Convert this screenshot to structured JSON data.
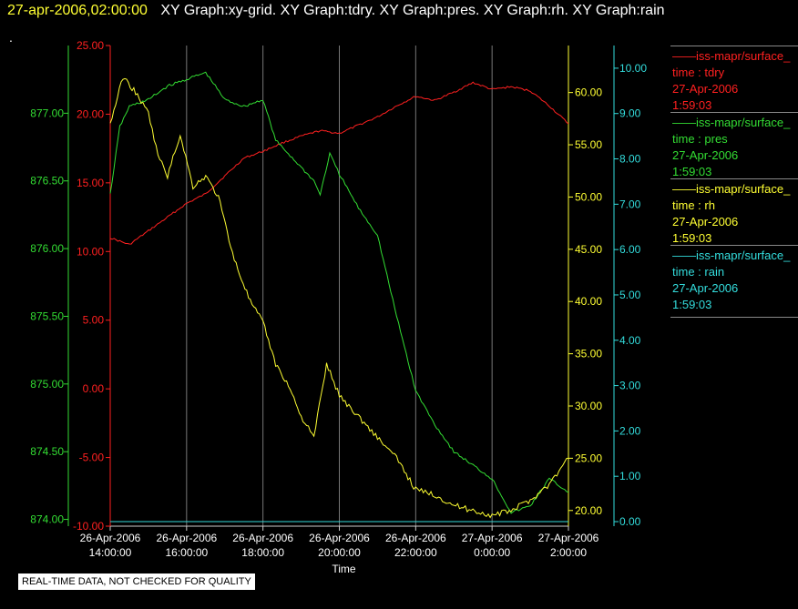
{
  "header": {
    "timestamp": "27-apr-2006,02:00:00",
    "titles": "XY Graph:xy-grid.  XY Graph:tdry.  XY Graph:pres.  XY Graph:rh.  XY Graph:rain",
    "marker": "."
  },
  "quality_label": "REAL-TIME DATA, NOT CHECKED FOR QUALITY",
  "legend": [
    {
      "name": "——iss-mapr/surface_",
      "field": "time : tdry",
      "date": "27-Apr-2006",
      "time": "1:59:03",
      "color": "#ff2020"
    },
    {
      "name": "——iss-mapr/surface_",
      "field": "time : pres",
      "date": "27-Apr-2006",
      "time": "1:59:03",
      "color": "#33dd33"
    },
    {
      "name": "——iss-mapr/surface_",
      "field": "time : rh",
      "date": "27-Apr-2006",
      "time": "1:59:03",
      "color": "#ffff33"
    },
    {
      "name": "——iss-mapr/surface_",
      "field": "time : rain",
      "date": "27-Apr-2006",
      "time": "1:59:03",
      "color": "#33dddd"
    }
  ],
  "chart_data": {
    "type": "line",
    "xlabel": "Time",
    "x_ticks": [
      {
        "date": "26-Apr-2006",
        "time": "14:00:00"
      },
      {
        "date": "26-Apr-2006",
        "time": "16:00:00"
      },
      {
        "date": "26-Apr-2006",
        "time": "18:00:00"
      },
      {
        "date": "26-Apr-2006",
        "time": "20:00:00"
      },
      {
        "date": "26-Apr-2006",
        "time": "22:00:00"
      },
      {
        "date": "27-Apr-2006",
        "time": "0:00:00"
      },
      {
        "date": "27-Apr-2006",
        "time": "2:00:00"
      }
    ],
    "grid": "vertical",
    "axes": {
      "pres": {
        "ylim": [
          873.95,
          877.5
        ],
        "ticks": [
          "874.00",
          "874.50",
          "875.00",
          "875.50",
          "876.00",
          "876.50",
          "877.00"
        ],
        "tick_values": [
          874.0,
          874.5,
          875.0,
          875.5,
          876.0,
          876.5,
          877.0
        ],
        "color": "#33dd33"
      },
      "tdry": {
        "ylim": [
          -10,
          25
        ],
        "ticks": [
          "-10.00",
          "-5.00",
          "0.00",
          "5.00",
          "10.00",
          "15.00",
          "20.00",
          "25.00"
        ],
        "tick_values": [
          -10,
          -5,
          0,
          5,
          10,
          15,
          20,
          25
        ],
        "color": "#ff2020"
      },
      "rh": {
        "ylim": [
          18.5,
          64.5
        ],
        "ticks": [
          "20.00",
          "25.00",
          "30.00",
          "35.00",
          "40.00",
          "45.00",
          "50.00",
          "55.00",
          "60.00"
        ],
        "tick_values": [
          20,
          25,
          30,
          35,
          40,
          45,
          50,
          55,
          60
        ],
        "color": "#ffff33"
      },
      "rain": {
        "ylim": [
          -0.1,
          10.5
        ],
        "ticks": [
          "0.00",
          "1.00",
          "2.00",
          "3.00",
          "4.00",
          "5.00",
          "6.00",
          "7.00",
          "8.00",
          "9.00",
          "10.00"
        ],
        "tick_values": [
          0,
          1,
          2,
          3,
          4,
          5,
          6,
          7,
          8,
          9,
          10
        ],
        "color": "#33dddd"
      }
    },
    "series": [
      {
        "field": "tdry",
        "axis": "tdry",
        "color": "#ff2020",
        "x": [
          "2006-04-26 14:00",
          "2006-04-26 14:30",
          "2006-04-26 15:00",
          "2006-04-26 15:30",
          "2006-04-26 16:00",
          "2006-04-26 16:30",
          "2006-04-26 17:00",
          "2006-04-26 17:30",
          "2006-04-26 18:00",
          "2006-04-26 18:30",
          "2006-04-26 19:00",
          "2006-04-26 19:30",
          "2006-04-26 20:00",
          "2006-04-26 20:30",
          "2006-04-26 21:00",
          "2006-04-26 21:30",
          "2006-04-26 22:00",
          "2006-04-26 22:30",
          "2006-04-26 23:00",
          "2006-04-26 23:30",
          "2006-04-27 00:00",
          "2006-04-27 00:30",
          "2006-04-27 01:00",
          "2006-04-27 01:30",
          "2006-04-27 02:00"
        ],
        "y": [
          11.0,
          10.5,
          11.5,
          12.5,
          13.5,
          14.2,
          15.5,
          16.8,
          17.3,
          17.9,
          18.4,
          18.8,
          18.6,
          19.2,
          19.8,
          20.6,
          21.3,
          21.0,
          21.6,
          22.3,
          21.8,
          22.0,
          21.7,
          20.6,
          19.3
        ]
      },
      {
        "field": "pres",
        "axis": "pres",
        "color": "#33dd33",
        "x": [
          "2006-04-26 14:00",
          "2006-04-26 14:15",
          "2006-04-26 14:30",
          "2006-04-26 15:00",
          "2006-04-26 15:30",
          "2006-04-26 16:00",
          "2006-04-26 16:30",
          "2006-04-26 17:00",
          "2006-04-26 17:30",
          "2006-04-26 18:00",
          "2006-04-26 18:20",
          "2006-04-26 18:40",
          "2006-04-26 19:00",
          "2006-04-26 19:20",
          "2006-04-26 19:30",
          "2006-04-26 19:45",
          "2006-04-26 20:00",
          "2006-04-26 20:30",
          "2006-04-26 21:00",
          "2006-04-26 21:30",
          "2006-04-26 22:00",
          "2006-04-26 22:30",
          "2006-04-26 23:00",
          "2006-04-26 23:30",
          "2006-04-27 00:00",
          "2006-04-27 00:30",
          "2006-04-27 01:00",
          "2006-04-27 01:30",
          "2006-04-27 02:00"
        ],
        "y": [
          876.4,
          876.9,
          877.05,
          877.1,
          877.2,
          877.25,
          877.3,
          877.1,
          877.05,
          877.1,
          876.8,
          876.7,
          876.6,
          876.5,
          876.4,
          876.7,
          876.55,
          876.3,
          876.1,
          875.5,
          874.95,
          874.7,
          874.5,
          874.4,
          874.3,
          874.05,
          874.1,
          874.3,
          874.2
        ]
      },
      {
        "field": "rh",
        "axis": "rh",
        "color": "#ffff33",
        "x": [
          "2006-04-26 14:00",
          "2006-04-26 14:20",
          "2006-04-26 14:40",
          "2006-04-26 15:00",
          "2006-04-26 15:15",
          "2006-04-26 15:30",
          "2006-04-26 15:50",
          "2006-04-26 16:10",
          "2006-04-26 16:30",
          "2006-04-26 16:50",
          "2006-04-26 17:15",
          "2006-04-26 17:40",
          "2006-04-26 18:00",
          "2006-04-26 18:20",
          "2006-04-26 18:40",
          "2006-04-26 19:00",
          "2006-04-26 19:20",
          "2006-04-26 19:40",
          "2006-04-26 20:00",
          "2006-04-26 20:30",
          "2006-04-26 21:00",
          "2006-04-26 21:30",
          "2006-04-26 22:00",
          "2006-04-26 22:30",
          "2006-04-26 23:00",
          "2006-04-26 23:30",
          "2006-04-27 00:00",
          "2006-04-27 00:30",
          "2006-04-27 01:00",
          "2006-04-27 01:30",
          "2006-04-27 02:00"
        ],
        "y": [
          57,
          61.5,
          60,
          58,
          54,
          52,
          56,
          51,
          52,
          50,
          44,
          40,
          38,
          34,
          32,
          29,
          27,
          34,
          31,
          29,
          27,
          25,
          22,
          21.5,
          20.5,
          20,
          19.5,
          20,
          21,
          22.5,
          25
        ]
      },
      {
        "field": "rain",
        "axis": "rain",
        "color": "#33dddd",
        "x": [
          "2006-04-26 14:00",
          "2006-04-27 02:00"
        ],
        "y": [
          0.0,
          0.0
        ]
      }
    ]
  }
}
